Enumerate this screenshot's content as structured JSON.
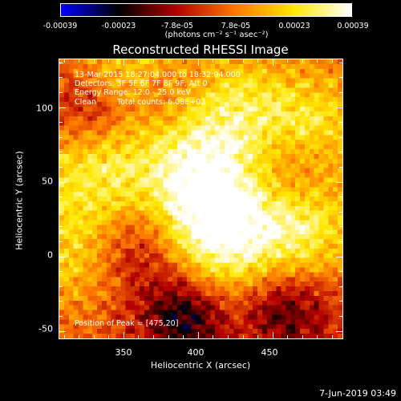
{
  "colorbar": {
    "ticks": [
      "-0.00039",
      "-0.00023",
      "-7.8e-05",
      "7.8e-05",
      "0.00023",
      "0.00039"
    ],
    "units": "(photons cm⁻² s⁻¹ asec⁻²)",
    "colormap": [
      "#0000ff",
      "#000000",
      "#b40000",
      "#ff7800",
      "#ffe800",
      "#ffffff"
    ]
  },
  "title": "Reconstructed RHESSI Image",
  "info": {
    "line1": "13-Mar-2015 18:27:04.000 to 18:32:04.000",
    "line2": "Detectors: 3F 5F 6F 7F 8F 9F, Att 0",
    "line3": "Energy Range: 12.0 - 25.0 keV",
    "line4_a": "Clean",
    "line4_b": "Total counts: 6.08E+03",
    "peak": "Position of Peak = [475,20]"
  },
  "axes": {
    "xlabel": "Heliocentric X (arcsec)",
    "ylabel": "Heliocentric Y (arcsec)",
    "xticks": [
      "350",
      "400",
      "450"
    ],
    "yticks": [
      "100",
      "50",
      "0",
      "-50"
    ]
  },
  "timestamp": "7-Jun-2019 03:49",
  "chart_data": {
    "type": "heatmap",
    "title": "Reconstructed RHESSI Image",
    "xlabel": "Heliocentric X (arcsec)",
    "ylabel": "Heliocentric Y (arcsec)",
    "xlim": [
      307,
      497
    ],
    "ylim": [
      -55,
      132
    ],
    "xticks": [
      350,
      400,
      450
    ],
    "yticks": [
      -50,
      0,
      50,
      100
    ],
    "colorbar_range": [
      -0.00039,
      0.00039
    ],
    "peak_position": [
      475,
      20
    ],
    "hotspots": [
      {
        "x": 415,
        "y": 15,
        "level": 1.0
      },
      {
        "x": 400,
        "y": 55,
        "level": 0.85
      },
      {
        "x": 330,
        "y": 60,
        "level": 0.75
      },
      {
        "x": 470,
        "y": 20,
        "level": 0.8
      },
      {
        "x": 360,
        "y": 125,
        "level": 0.7
      },
      {
        "x": 475,
        "y": 90,
        "level": 0.65
      },
      {
        "x": 420,
        "y": 100,
        "level": 0.6
      },
      {
        "x": 310,
        "y": 0,
        "level": 0.55
      }
    ],
    "coldspots": [
      {
        "x": 390,
        "y": -40,
        "level": 0.9
      },
      {
        "x": 460,
        "y": -35,
        "level": 0.7
      },
      {
        "x": 330,
        "y": 95,
        "level": 0.6
      },
      {
        "x": 380,
        "y": 110,
        "level": 0.55
      },
      {
        "x": 460,
        "y": 55,
        "level": 0.5
      },
      {
        "x": 360,
        "y": 5,
        "level": 0.45
      }
    ]
  }
}
